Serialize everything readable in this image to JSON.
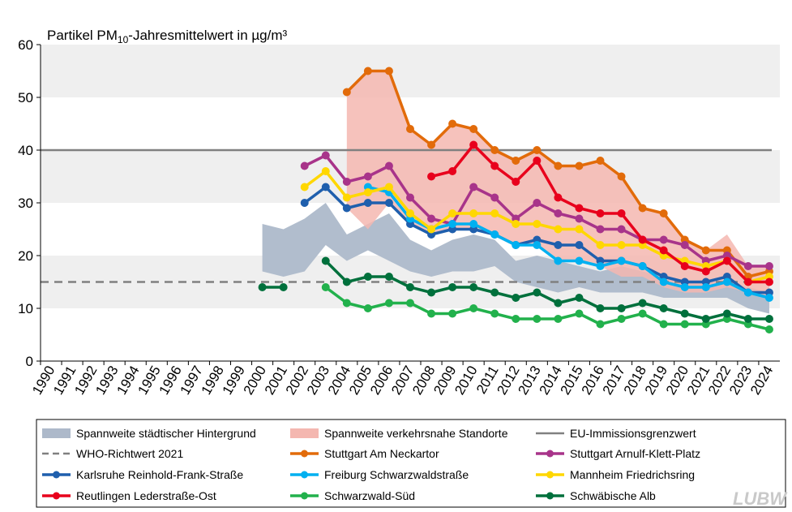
{
  "chart_data": {
    "type": "line",
    "title": "Partikel PM10-Jahresmittelwert  in µg/m³",
    "title_parts": {
      "before": "Partikel PM",
      "sub": "10",
      "after": "-Jahresmittelwert  in µg/m³"
    },
    "xlabel": "",
    "ylabel": "",
    "ylim": [
      0,
      60
    ],
    "yticks": [
      0,
      10,
      20,
      30,
      40,
      50,
      60
    ],
    "x": [
      1990,
      1991,
      1992,
      1993,
      1994,
      1995,
      1996,
      1997,
      1998,
      1999,
      2000,
      2001,
      2002,
      2003,
      2004,
      2005,
      2006,
      2007,
      2008,
      2009,
      2010,
      2011,
      2012,
      2013,
      2014,
      2015,
      2016,
      2017,
      2018,
      2019,
      2020,
      2021,
      2022,
      2023,
      2024
    ],
    "x_labels": [
      "1990",
      "1991",
      "1992",
      "1993",
      "1994",
      "1995",
      "1996",
      "1997",
      "1998",
      "1999",
      "2000",
      "2001",
      "2002",
      "2003",
      "2004",
      "2005",
      "2006",
      "2007",
      "2008",
      "2009",
      "2010",
      "2011",
      "2012",
      "2013",
      "2014",
      "2015",
      "2016",
      "2017",
      "2018",
      "2019",
      "2020",
      "2021",
      "2022",
      "2023",
      "2024"
    ],
    "y_labels": [
      "0",
      "10",
      "20",
      "30",
      "40",
      "50",
      "60"
    ],
    "bands": [
      {
        "name": "Spannweite städtischer Hintergrund",
        "color": "#adb9ca",
        "x": [
          2000,
          2001,
          2002,
          2003,
          2004,
          2005,
          2006,
          2007,
          2008,
          2009,
          2010,
          2011,
          2012,
          2013,
          2014,
          2015,
          2016,
          2017,
          2018,
          2019,
          2020,
          2021,
          2022,
          2023,
          2024
        ],
        "lower": [
          17,
          16,
          17,
          22,
          19,
          21,
          19,
          17,
          16,
          17,
          17,
          18,
          15,
          14,
          13,
          14,
          13,
          13,
          13,
          12,
          12,
          12,
          12,
          10,
          9
        ],
        "upper": [
          26,
          25,
          27,
          30,
          24,
          26,
          28,
          23,
          21,
          23,
          24,
          23,
          19,
          20,
          19,
          18,
          17,
          18,
          17,
          16,
          15,
          15,
          15,
          14,
          13
        ]
      },
      {
        "name": "Spannweite verkehrsnahe Standorte",
        "color": "#f4b7b0",
        "x": [
          2004,
          2005,
          2006,
          2007,
          2008,
          2009,
          2010,
          2011,
          2012,
          2013,
          2014,
          2015,
          2016,
          2017,
          2018,
          2019,
          2020,
          2021,
          2022,
          2023,
          2024
        ],
        "lower": [
          29,
          25,
          30,
          26,
          24,
          25,
          25,
          24,
          22,
          22,
          19,
          19,
          18,
          16,
          16,
          14,
          13,
          13,
          14,
          13,
          12
        ],
        "upper": [
          51,
          55,
          55,
          44,
          41,
          45,
          44,
          40,
          38,
          40,
          37,
          37,
          38,
          35,
          29,
          28,
          23,
          21,
          24,
          18,
          18
        ]
      }
    ],
    "hlines": [
      {
        "name": "EU-Immissionsgrenzwert",
        "value": 40,
        "color": "#808080",
        "dashed": false
      },
      {
        "name": "WHO-Richtwert 2021",
        "value": 15,
        "color": "#808080",
        "dashed": true
      }
    ],
    "series": [
      {
        "name": "Stuttgart Am Neckartor",
        "color": "#e26b0a",
        "x": [
          2004,
          2005,
          2006,
          2007,
          2008,
          2009,
          2010,
          2011,
          2012,
          2013,
          2014,
          2015,
          2016,
          2017,
          2018,
          2019,
          2020,
          2021,
          2022,
          2023,
          2024
        ],
        "values": [
          51,
          55,
          55,
          44,
          41,
          45,
          44,
          40,
          38,
          40,
          37,
          37,
          38,
          35,
          29,
          28,
          23,
          21,
          21,
          16,
          17
        ]
      },
      {
        "name": "Stuttgart Arnulf-Klett-Platz",
        "color": "#a8348a",
        "x": [
          2002,
          2003,
          2004,
          2005,
          2006,
          2007,
          2008,
          2009,
          2010,
          2011,
          2012,
          2013,
          2014,
          2015,
          2016,
          2017,
          2018,
          2019,
          2020,
          2021,
          2022,
          2023,
          2024
        ],
        "values": [
          37,
          39,
          34,
          35,
          37,
          31,
          27,
          26,
          33,
          31,
          27,
          30,
          28,
          27,
          25,
          25,
          23,
          23,
          22,
          19,
          20,
          18,
          18
        ]
      },
      {
        "name": "Karlsruhe Reinhold-Frank-Straße",
        "color": "#1f5fad",
        "x": [
          2002,
          2003,
          2004,
          2005,
          2006,
          2007,
          2008,
          2009,
          2010,
          2011,
          2012,
          2013,
          2014,
          2015,
          2016,
          2017,
          2018,
          2019,
          2020,
          2021,
          2022,
          2023,
          2024
        ],
        "values": [
          30,
          33,
          29,
          30,
          30,
          26,
          24,
          25,
          25,
          24,
          22,
          23,
          22,
          22,
          19,
          19,
          18,
          16,
          15,
          15,
          16,
          13,
          13
        ]
      },
      {
        "name": "Freiburg Schwarzwaldstraße",
        "color": "#00b0f0",
        "x": [
          2005,
          2006,
          2007,
          2008,
          2009,
          2010,
          2011,
          2012,
          2013,
          2014,
          2015,
          2016,
          2017,
          2018,
          2019,
          2020,
          2021,
          2022,
          2023,
          2024
        ],
        "values": [
          33,
          32,
          27,
          25,
          26,
          26,
          24,
          22,
          22,
          19,
          19,
          18,
          19,
          18,
          15,
          14,
          14,
          15,
          13,
          12
        ]
      },
      {
        "name": "Mannheim Friedrichsring",
        "color": "#ffd700",
        "x": [
          2002,
          2003,
          2004,
          2005,
          2006,
          2007,
          2008,
          2009,
          2010,
          2011,
          2012,
          2013,
          2014,
          2015,
          2016,
          2017,
          2018,
          2019,
          2020,
          2021,
          2022,
          2023,
          2024
        ],
        "values": [
          33,
          36,
          31,
          32,
          33,
          28,
          25,
          28,
          28,
          28,
          26,
          26,
          25,
          25,
          22,
          22,
          22,
          20,
          19,
          18,
          19,
          15,
          16
        ]
      },
      {
        "name": "Reutlingen Lederstraße-Ost",
        "color": "#e8001c",
        "x": [
          2008,
          2009,
          2010,
          2011,
          2012,
          2013,
          2014,
          2015,
          2016,
          2017,
          2018,
          2019,
          2020,
          2021,
          2022,
          2023,
          2024
        ],
        "values": [
          35,
          36,
          41,
          37,
          34,
          38,
          31,
          29,
          28,
          28,
          23,
          21,
          18,
          17,
          19,
          15,
          15
        ]
      },
      {
        "name": "Schwarzwald-Süd",
        "color": "#22b14c",
        "x": [
          2003,
          2004,
          2005,
          2006,
          2007,
          2008,
          2009,
          2010,
          2011,
          2012,
          2013,
          2014,
          2015,
          2016,
          2017,
          2018,
          2019,
          2020,
          2021,
          2022,
          2023,
          2024
        ],
        "values": [
          14,
          11,
          10,
          11,
          11,
          9,
          9,
          10,
          9,
          8,
          8,
          8,
          9,
          7,
          8,
          9,
          7,
          7,
          7,
          8,
          7,
          6
        ]
      },
      {
        "name": "Schwäbische Alb",
        "color": "#00703c",
        "x": [
          2000,
          2001,
          2003,
          2004,
          2005,
          2006,
          2007,
          2008,
          2009,
          2010,
          2011,
          2012,
          2013,
          2014,
          2015,
          2016,
          2017,
          2018,
          2019,
          2020,
          2021,
          2022,
          2023,
          2024
        ],
        "values": [
          14,
          14,
          19,
          15,
          16,
          16,
          14,
          13,
          14,
          14,
          13,
          12,
          13,
          11,
          12,
          10,
          10,
          11,
          10,
          9,
          8,
          9,
          8,
          8
        ]
      }
    ],
    "legend": {
      "placement": "bottom",
      "entries": [
        {
          "label": "Spannweite städtischer Hintergrund",
          "kind": "band",
          "color": "#adb9ca"
        },
        {
          "label": "Spannweite verkehrsnahe Standorte",
          "kind": "band",
          "color": "#f4b7b0"
        },
        {
          "label": "EU-Immissionsgrenzwert",
          "kind": "line",
          "color": "#808080"
        },
        {
          "label": "WHO-Richtwert 2021",
          "kind": "dash",
          "color": "#808080"
        },
        {
          "label": "Stuttgart Am Neckartor",
          "kind": "marker",
          "color": "#e26b0a"
        },
        {
          "label": "Stuttgart Arnulf-Klett-Platz",
          "kind": "marker",
          "color": "#a8348a"
        },
        {
          "label": "Karlsruhe Reinhold-Frank-Straße",
          "kind": "marker",
          "color": "#1f5fad"
        },
        {
          "label": "Freiburg Schwarzwaldstraße",
          "kind": "marker",
          "color": "#00b0f0"
        },
        {
          "label": "Mannheim Friedrichsring",
          "kind": "marker",
          "color": "#ffd700"
        },
        {
          "label": "Reutlingen Lederstraße-Ost",
          "kind": "marker",
          "color": "#e8001c"
        },
        {
          "label": "Schwarzwald-Süd",
          "kind": "marker",
          "color": "#22b14c"
        },
        {
          "label": "Schwäbische Alb",
          "kind": "marker",
          "color": "#00703c"
        }
      ]
    },
    "grid_bands": true,
    "grid_band_color": "#efefef",
    "logo": "LUBW"
  }
}
